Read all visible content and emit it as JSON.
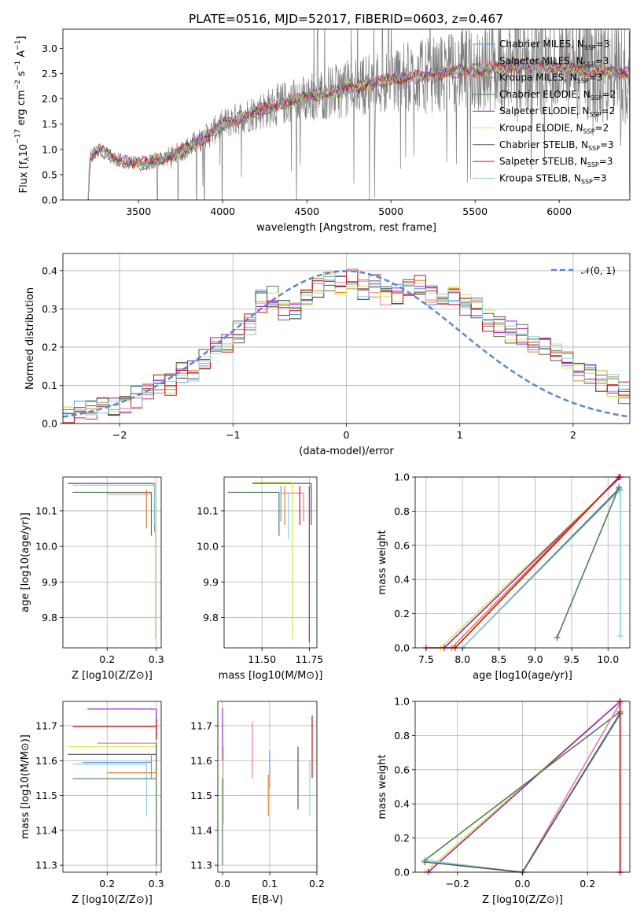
{
  "figure": {
    "title": "PLATE=0516, MJD=52017, FIBERID=0603, z=0.467"
  },
  "colors": {
    "Chabrier MILES": "#5e9ae6",
    "Salpeter MILES": "#ef78a8",
    "Kroupa MILES": "#e6822a",
    "Chabrier ELODIE": "#4e7d52",
    "Salpeter ELODIE": "#a020c8",
    "Kroupa ELODIE": "#d4e84c",
    "Chabrier STELIB": "#555555",
    "Salpeter STELIB": "#c81414",
    "Kroupa STELIB": "#88d2dc",
    "data": "#7f7f7f",
    "normal": "#5b86d6"
  },
  "chart_data": [
    {
      "id": "spectrum",
      "type": "line",
      "xlabel": "wavelength [Angstrom, rest frame]",
      "ylabel_parts": [
        "Flux [f",
        "λ",
        "10",
        "−17",
        " erg cm",
        "−2",
        " s",
        "−1",
        " A",
        "−1",
        "]"
      ],
      "xlim": [
        3050,
        6420
      ],
      "ylim": [
        0,
        3.38
      ],
      "xticks": [
        3500,
        4000,
        4500,
        5000,
        5500,
        6000
      ],
      "yticks": [
        0.0,
        0.5,
        1.0,
        1.5,
        2.0,
        2.5,
        3.0
      ],
      "xtick_labels": [
        "3500",
        "4000",
        "4500",
        "5000",
        "5500",
        "6000"
      ],
      "ytick_labels": [
        "0.0",
        "0.5",
        "1.0",
        "1.5",
        "2.0",
        "2.5",
        "3.0"
      ],
      "grid": false,
      "legend_position": "top-right",
      "data_range": [
        3200,
        6420
      ],
      "continuum_points": [
        [
          3200,
          0.0
        ],
        [
          3210,
          0.85
        ],
        [
          3260,
          0.98
        ],
        [
          3300,
          0.95
        ],
        [
          3350,
          0.82
        ],
        [
          3450,
          0.74
        ],
        [
          3550,
          0.72
        ],
        [
          3700,
          0.88
        ],
        [
          3800,
          1.05
        ],
        [
          3900,
          1.25
        ],
        [
          4000,
          1.5
        ],
        [
          4200,
          1.75
        ],
        [
          4400,
          1.95
        ],
        [
          4600,
          2.1
        ],
        [
          4800,
          2.25
        ],
        [
          5000,
          2.4
        ],
        [
          5200,
          2.45
        ],
        [
          5400,
          2.55
        ],
        [
          5600,
          2.6
        ],
        [
          5800,
          2.65
        ],
        [
          6000,
          2.6
        ],
        [
          6200,
          2.55
        ],
        [
          6420,
          2.5
        ]
      ],
      "legend": [
        {
          "label": "Chabrier MILES",
          "n": "3"
        },
        {
          "label": "Salpeter MILES",
          "n": "3"
        },
        {
          "label": "Kroupa MILES",
          "n": "3"
        },
        {
          "label": "Chabrier ELODIE",
          "n": "2"
        },
        {
          "label": "Salpeter ELODIE",
          "n": "2"
        },
        {
          "label": "Kroupa ELODIE",
          "n": "2"
        },
        {
          "label": "Chabrier STELIB",
          "n": "3"
        },
        {
          "label": "Salpeter STELIB",
          "n": "3"
        },
        {
          "label": "Kroupa STELIB",
          "n": "3"
        }
      ],
      "legend_prefix": "N",
      "legend_sub": "SSP"
    },
    {
      "id": "residual-histogram",
      "type": "histogram",
      "xlabel": "(data-model)/error",
      "ylabel": "Normed distribution",
      "xlim": [
        -2.5,
        2.5
      ],
      "ylim": [
        0,
        0.445
      ],
      "xticks": [
        -2,
        -1,
        0,
        1,
        2
      ],
      "yticks": [
        0.0,
        0.1,
        0.2,
        0.3,
        0.4
      ],
      "xtick_labels": [
        "−2",
        "−1",
        "0",
        "1",
        "2"
      ],
      "ytick_labels": [
        "0.0",
        "0.1",
        "0.2",
        "0.3",
        "0.4"
      ],
      "grid": true,
      "legend_position": "top-right",
      "legend_label": "𝒩(0, 1)",
      "bin_width": 0.1,
      "bin_start": -2.5,
      "base_values": [
        0.02,
        0.03,
        0.04,
        0.04,
        0.05,
        0.05,
        0.07,
        0.08,
        0.1,
        0.1,
        0.13,
        0.14,
        0.17,
        0.2,
        0.21,
        0.24,
        0.26,
        0.32,
        0.33,
        0.3,
        0.29,
        0.33,
        0.35,
        0.37,
        0.36,
        0.38,
        0.35,
        0.36,
        0.34,
        0.34,
        0.35,
        0.36,
        0.33,
        0.34,
        0.33,
        0.31,
        0.3,
        0.27,
        0.25,
        0.24,
        0.23,
        0.21,
        0.2,
        0.19,
        0.17,
        0.14,
        0.13,
        0.11,
        0.1,
        0.08
      ],
      "normal_curve": {
        "mean": 0,
        "sigma": 1
      }
    },
    {
      "id": "age-vs-Z",
      "type": "scatter-error",
      "xlabel": "Z [log10(Z/Z⊙)]",
      "ylabel": "age  [log10(age/yr)]",
      "xlim": [
        0.11,
        0.31
      ],
      "ylim": [
        9.715,
        10.195
      ],
      "xticks": [
        0.2,
        0.3
      ],
      "yticks": [
        9.8,
        9.9,
        10.0,
        10.1
      ],
      "xtick_labels": [
        "0.2",
        "0.3"
      ],
      "ytick_labels": [
        "9.8",
        "9.9",
        "10.0",
        "10.1"
      ],
      "grid": true,
      "bars": [
        {
          "series": "Chabrier STELIB",
          "x0": 0.12,
          "x1": 0.297,
          "y": 10.177,
          "v0": 10.04,
          "v1": 10.177
        },
        {
          "series": "Kroupa STELIB",
          "x0": 0.13,
          "x1": 0.296,
          "y": 10.172,
          "v0": 10.06,
          "v1": 10.172
        },
        {
          "series": "Chabrier ELODIE",
          "x0": 0.13,
          "x1": 0.29,
          "y": 10.152,
          "v0": 10.03,
          "v1": 10.152
        },
        {
          "series": "Salpeter MILES",
          "x0": 0.2,
          "x1": 0.29,
          "y": 10.147,
          "v0": 10.147,
          "v1": 10.147
        },
        {
          "series": "Kroupa ELODIE",
          "x0": 0.29,
          "x1": 0.298,
          "y": 10.175,
          "v0": 9.74,
          "v1": 10.175
        },
        {
          "series": "Kroupa MILES",
          "x0": 0.28,
          "x1": 0.28,
          "y": 10.1,
          "v0": 10.05,
          "v1": 10.16
        }
      ]
    },
    {
      "id": "age-vs-mass",
      "type": "scatter-error",
      "xlabel": "mass [log10(M/M⊙)]",
      "ylabel": "",
      "xlim": [
        11.3,
        11.79
      ],
      "ylim": [
        9.715,
        10.195
      ],
      "xticks": [
        11.5,
        11.75
      ],
      "yticks": [
        9.8,
        9.9,
        10.0,
        10.1
      ],
      "xtick_labels": [
        "11.50",
        "11.75"
      ],
      "ytick_labels": [
        "9.8",
        "9.9",
        "10.0",
        "10.1"
      ],
      "grid": true,
      "bars": [
        {
          "series": "Chabrier STELIB",
          "x0": 11.45,
          "x1": 11.76,
          "y": 10.177,
          "v0": 10.06,
          "v1": 10.177
        },
        {
          "series": "Kroupa ELODIE",
          "x0": 11.45,
          "x1": 11.66,
          "y": 10.18,
          "v0": 9.74,
          "v1": 10.18
        },
        {
          "series": "Chabrier ELODIE",
          "x0": 11.32,
          "x1": 11.59,
          "y": 10.152,
          "v0": 10.03,
          "v1": 10.152
        },
        {
          "series": "Salpeter MILES",
          "x0": 11.6,
          "x1": 11.72,
          "y": 10.15,
          "v0": 10.07,
          "v1": 10.15
        },
        {
          "series": "Salpeter ELODIE",
          "x0": 11.75,
          "x1": 11.75,
          "y": 10.17,
          "v0": 9.73,
          "v1": 10.17
        },
        {
          "series": "Salpeter STELIB",
          "x0": 11.7,
          "x1": 11.7,
          "y": 10.12,
          "v0": 10.06,
          "v1": 10.17
        },
        {
          "series": "Kroupa MILES",
          "x0": 11.62,
          "x1": 11.62,
          "y": 10.12,
          "v0": 10.06,
          "v1": 10.17
        },
        {
          "series": "Chabrier MILES",
          "x0": 11.6,
          "x1": 11.6,
          "y": 10.12,
          "v0": 10.07,
          "v1": 10.17
        },
        {
          "series": "Kroupa STELIB",
          "x0": 11.64,
          "x1": 11.64,
          "y": 10.1,
          "v0": 10.02,
          "v1": 10.15
        }
      ]
    },
    {
      "id": "mass-weight-vs-age",
      "type": "line",
      "xlabel": "age  [log10(age/yr)]",
      "ylabel": "mass weight",
      "xlim": [
        7.35,
        10.3
      ],
      "ylim": [
        0,
        1.0
      ],
      "xticks": [
        7.5,
        8.0,
        8.5,
        9.0,
        9.5,
        10.0
      ],
      "yticks": [
        0.0,
        0.2,
        0.4,
        0.6,
        0.8,
        1.0
      ],
      "xtick_labels": [
        "7.5",
        "8.0",
        "8.5",
        "9.0",
        "9.5",
        "10.0"
      ],
      "ytick_labels": [
        "0.0",
        "0.2",
        "0.4",
        "0.6",
        "0.8",
        "1.0"
      ],
      "grid": true,
      "series": [
        {
          "name": "Kroupa ELODIE",
          "x": [
            7.7,
            10.17
          ],
          "y": [
            0.0,
            1.0
          ]
        },
        {
          "name": "Salpeter ELODIE",
          "x": [
            7.75,
            10.17
          ],
          "y": [
            0.0,
            1.0
          ]
        },
        {
          "name": "Kroupa MILES",
          "x": [
            7.85,
            10.15
          ],
          "y": [
            0.0,
            1.0
          ]
        },
        {
          "name": "Salpeter MILES",
          "x": [
            7.9,
            10.15
          ],
          "y": [
            0.0,
            1.0
          ]
        },
        {
          "name": "Salpeter STELIB",
          "x": [
            7.5,
            7.9,
            10.15
          ],
          "y": [
            0.0,
            0.0,
            1.0
          ]
        },
        {
          "name": "Chabrier MILES",
          "x": [
            8.0,
            10.15
          ],
          "y": [
            0.0,
            0.93
          ]
        },
        {
          "name": "Chabrier STELIB",
          "x": [
            8.0,
            10.15
          ],
          "y": [
            0.0,
            0.93
          ]
        },
        {
          "name": "Kroupa STELIB",
          "x": [
            8.0,
            10.15,
            10.17,
            10.17
          ],
          "y": [
            0.0,
            0.92,
            0.92,
            0.07
          ]
        },
        {
          "name": "Chabrier ELODIE",
          "x": [
            9.3,
            10.15
          ],
          "y": [
            0.06,
            0.94
          ]
        }
      ]
    },
    {
      "id": "mass-vs-Z",
      "type": "scatter-error",
      "xlabel": "Z [log10(Z/Z⊙)]",
      "ylabel": "mass [log10(M/M⊙)]",
      "xlim": [
        0.11,
        0.31
      ],
      "ylim": [
        11.28,
        11.77
      ],
      "xticks": [
        0.2,
        0.3
      ],
      "yticks": [
        11.3,
        11.4,
        11.5,
        11.6,
        11.7
      ],
      "xtick_labels": [
        "0.2",
        "0.3"
      ],
      "ytick_labels": [
        "11.3",
        "11.4",
        "11.5",
        "11.6",
        "11.7"
      ],
      "grid": true,
      "bars": [
        {
          "series": "Salpeter ELODIE",
          "x0": 0.16,
          "x1": 0.3,
          "y": 11.748,
          "v0": 11.65,
          "v1": 11.748
        },
        {
          "series": "Salpeter STELIB",
          "x0": 0.13,
          "x1": 0.3,
          "y": 11.698,
          "v0": 11.6,
          "v1": 11.72
        },
        {
          "series": "Salpeter MILES",
          "x0": 0.18,
          "x1": 0.3,
          "y": 11.65,
          "v0": 11.65,
          "v1": 11.65
        },
        {
          "series": "Kroupa ELODIE",
          "x0": 0.12,
          "x1": 0.3,
          "y": 11.64,
          "v0": 11.45,
          "v1": 11.66
        },
        {
          "series": "Chabrier STELIB",
          "x0": 0.12,
          "x1": 0.3,
          "y": 11.618,
          "v0": 11.55,
          "v1": 11.65
        },
        {
          "series": "Chabrier MILES",
          "x0": 0.15,
          "x1": 0.29,
          "y": 11.595,
          "v0": 11.55,
          "v1": 11.62
        },
        {
          "series": "Kroupa STELIB",
          "x0": 0.13,
          "x1": 0.28,
          "y": 11.59,
          "v0": 11.44,
          "v1": 11.6
        },
        {
          "series": "Kroupa MILES",
          "x0": 0.2,
          "x1": 0.3,
          "y": 11.565,
          "v0": 11.56,
          "v1": 11.565
        },
        {
          "series": "Chabrier ELODIE",
          "x0": 0.13,
          "x1": 0.3,
          "y": 11.548,
          "v0": 11.3,
          "v1": 11.548
        }
      ]
    },
    {
      "id": "mass-vs-ebv",
      "type": "scatter-error",
      "xlabel": "E(B-V)",
      "ylabel": "",
      "xlim": [
        -0.01,
        0.2
      ],
      "ylim": [
        11.28,
        11.77
      ],
      "xticks": [
        0.0,
        0.1,
        0.2
      ],
      "yticks": [
        11.3,
        11.4,
        11.5,
        11.6,
        11.7
      ],
      "xtick_labels": [
        "0.0",
        "0.1",
        "0.2"
      ],
      "ytick_labels": [
        "11.3",
        "11.4",
        "11.5",
        "11.6",
        "11.7"
      ],
      "grid": true,
      "bars": [
        {
          "series": "Salpeter ELODIE",
          "x0": 0.0,
          "x1": 0.0,
          "y": 11.7,
          "v0": 11.6,
          "v1": 11.75
        },
        {
          "series": "Chabrier ELODIE",
          "x0": 0.0,
          "x1": 0.0,
          "y": 11.4,
          "v0": 11.3,
          "v1": 11.55
        },
        {
          "series": "Kroupa ELODIE",
          "x0": 0.002,
          "x1": 0.002,
          "y": 11.55,
          "v0": 11.42,
          "v1": 11.64
        },
        {
          "series": "Salpeter MILES",
          "x0": 0.063,
          "x1": 0.063,
          "y": 11.63,
          "v0": 11.55,
          "v1": 11.71
        },
        {
          "series": "Kroupa MILES",
          "x0": 0.097,
          "x1": 0.097,
          "y": 11.5,
          "v0": 11.44,
          "v1": 11.56
        },
        {
          "series": "Chabrier MILES",
          "x0": 0.1,
          "x1": 0.1,
          "y": 11.58,
          "v0": 11.52,
          "v1": 11.63
        },
        {
          "series": "Chabrier STELIB",
          "x0": 0.16,
          "x1": 0.16,
          "y": 11.55,
          "v0": 11.46,
          "v1": 11.64
        },
        {
          "series": "Kroupa STELIB",
          "x0": 0.185,
          "x1": 0.185,
          "y": 11.52,
          "v0": 11.44,
          "v1": 11.6
        },
        {
          "series": "Salpeter STELIB",
          "x0": 0.19,
          "x1": 0.19,
          "y": 11.64,
          "v0": 11.55,
          "v1": 11.73
        }
      ]
    },
    {
      "id": "mass-weight-vs-Z",
      "type": "line",
      "xlabel": "Z [log10(Z/Z⊙)]",
      "ylabel": "mass weight",
      "xlim": [
        -0.33,
        0.33
      ],
      "ylim": [
        0,
        1.0
      ],
      "xticks": [
        -0.2,
        0.0,
        0.2
      ],
      "yticks": [
        0.0,
        0.2,
        0.4,
        0.6,
        0.8,
        1.0
      ],
      "xtick_labels": [
        "−0.2",
        "0.0",
        "0.2"
      ],
      "ytick_labels": [
        "0.0",
        "0.2",
        "0.4",
        "0.6",
        "0.8",
        "1.0"
      ],
      "grid": true,
      "series": [
        {
          "name": "Kroupa ELODIE",
          "x": [
            -0.3,
            0.3
          ],
          "y": [
            0.0,
            1.0
          ]
        },
        {
          "name": "Salpeter ELODIE",
          "x": [
            -0.29,
            0.3
          ],
          "y": [
            0.0,
            1.0
          ]
        },
        {
          "name": "Chabrier ELODIE",
          "x": [
            -0.3,
            0.3
          ],
          "y": [
            0.07,
            0.94
          ]
        },
        {
          "name": "Salpeter MILES",
          "x": [
            0.0,
            0.3
          ],
          "y": [
            0.0,
            0.99
          ]
        },
        {
          "name": "Chabrier MILES",
          "x": [
            0.0,
            0.3
          ],
          "y": [
            0.0,
            0.93
          ]
        },
        {
          "name": "Kroupa STELIB",
          "x": [
            -0.3,
            0.0,
            0.3,
            0.3
          ],
          "y": [
            0.07,
            0.0,
            0.92,
            0.93
          ]
        },
        {
          "name": "Chabrier STELIB",
          "x": [
            -0.3,
            0.0,
            0.3
          ],
          "y": [
            0.06,
            0.0,
            0.93
          ]
        },
        {
          "name": "Kroupa MILES",
          "x": [
            0.3,
            0.3
          ],
          "y": [
            0.0,
            1.0
          ]
        },
        {
          "name": "Salpeter STELIB",
          "x": [
            0.3,
            0.3
          ],
          "y": [
            0.0,
            1.0
          ]
        }
      ]
    }
  ]
}
